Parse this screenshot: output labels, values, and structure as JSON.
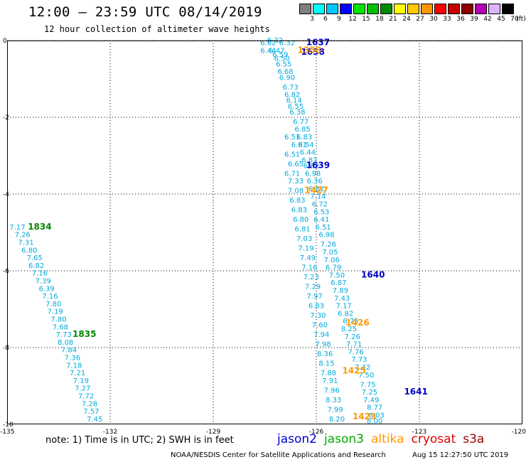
{
  "header": {
    "title": "12:00 — 23:59 UTC 08/14/2019",
    "subtitle": "12 hour collection of altimeter wave heights"
  },
  "colorbar": {
    "unit": "(ft)",
    "bins": [
      {
        "label": "3",
        "color": "#7f7f7f"
      },
      {
        "label": "6",
        "color": "#00ffff"
      },
      {
        "label": "9",
        "color": "#00c8ff"
      },
      {
        "label": "12",
        "color": "#0000ff"
      },
      {
        "label": "15",
        "color": "#00e600"
      },
      {
        "label": "18",
        "color": "#00c000"
      },
      {
        "label": "21",
        "color": "#008c00"
      },
      {
        "label": "24",
        "color": "#ffff00"
      },
      {
        "label": "27",
        "color": "#ffc800"
      },
      {
        "label": "30",
        "color": "#ff9600"
      },
      {
        "label": "33",
        "color": "#ff0000"
      },
      {
        "label": "36",
        "color": "#c80000"
      },
      {
        "label": "39",
        "color": "#8c0000"
      },
      {
        "label": "42",
        "color": "#b400b4"
      },
      {
        "label": "45",
        "color": "#dcb4ff"
      },
      {
        "label": "70",
        "color": "#000000"
      }
    ]
  },
  "axes": {
    "x_ticks": [
      "-135",
      "-132",
      "-129",
      "-126",
      "-123",
      "-120"
    ],
    "y_ticks": [
      "0",
      "-2",
      "-4",
      "-6",
      "-8",
      "-10"
    ],
    "lon_range": [
      -135,
      -120
    ],
    "lat_range": [
      -10,
      0
    ],
    "grid": "dotted"
  },
  "tracks": [
    {
      "satellite": "jason2",
      "color": "#00aadd",
      "swh": [
        {
          "lon": -126.85,
          "lat": -0.05,
          "v": "6.32"
        },
        {
          "lon": -127.2,
          "lat": 0.02,
          "v": "6.32"
        },
        {
          "lon": -127.15,
          "lat": -0.25,
          "v": "6.47"
        },
        {
          "lon": -127.05,
          "lat": -0.35,
          "v": "6.59"
        },
        {
          "lon": -127.0,
          "lat": -0.45,
          "v": "6.50"
        },
        {
          "lon": -126.95,
          "lat": -0.6,
          "v": "6.55"
        },
        {
          "lon": -126.9,
          "lat": -0.8,
          "v": "6.68"
        },
        {
          "lon": -126.85,
          "lat": -0.95,
          "v": "6.90"
        },
        {
          "lon": -126.75,
          "lat": -1.2,
          "v": "6.73"
        },
        {
          "lon": -126.7,
          "lat": -1.4,
          "v": "6.82"
        },
        {
          "lon": -126.65,
          "lat": -1.55,
          "v": "6.14"
        },
        {
          "lon": -126.6,
          "lat": -1.7,
          "v": "6.55"
        },
        {
          "lon": -126.55,
          "lat": -1.85,
          "v": "6.38"
        },
        {
          "lon": -126.45,
          "lat": -2.1,
          "v": "6.77"
        },
        {
          "lon": -126.4,
          "lat": -2.3,
          "v": "6.85"
        },
        {
          "lon": -126.35,
          "lat": -2.5,
          "v": "6.83"
        },
        {
          "lon": -126.3,
          "lat": -2.7,
          "v": "6.54"
        },
        {
          "lon": -126.25,
          "lat": -2.9,
          "v": "6.44"
        },
        {
          "lon": -126.2,
          "lat": -3.1,
          "v": "6.87"
        },
        {
          "lon": -126.15,
          "lat": -3.25,
          "v": "6.62"
        },
        {
          "lon": -126.1,
          "lat": -3.45,
          "v": "6.98"
        },
        {
          "lon": -126.05,
          "lat": -3.65,
          "v": "6.36"
        },
        {
          "lon": -126.0,
          "lat": -3.85,
          "v": "6.81"
        },
        {
          "lon": -125.95,
          "lat": -4.05,
          "v": "7.14"
        },
        {
          "lon": -125.9,
          "lat": -4.25,
          "v": "6.72"
        },
        {
          "lon": -125.85,
          "lat": -4.45,
          "v": "6.53"
        },
        {
          "lon": -125.85,
          "lat": -4.65,
          "v": "6.41"
        },
        {
          "lon": -125.8,
          "lat": -4.85,
          "v": "6.51"
        },
        {
          "lon": -125.7,
          "lat": -5.05,
          "v": "6.98"
        },
        {
          "lon": -125.65,
          "lat": -5.3,
          "v": "7.26"
        },
        {
          "lon": -125.6,
          "lat": -5.5,
          "v": "7.05"
        },
        {
          "lon": -125.55,
          "lat": -5.7,
          "v": "7.06"
        },
        {
          "lon": -125.5,
          "lat": -5.9,
          "v": "6.79"
        },
        {
          "lon": -125.4,
          "lat": -6.1,
          "v": "7.50"
        },
        {
          "lon": -125.35,
          "lat": -6.3,
          "v": "6.87"
        },
        {
          "lon": -125.3,
          "lat": -6.5,
          "v": "7.89"
        },
        {
          "lon": -125.25,
          "lat": -6.7,
          "v": "7.43"
        },
        {
          "lon": -125.2,
          "lat": -6.9,
          "v": "7.17"
        },
        {
          "lon": -125.15,
          "lat": -7.1,
          "v": "6.82"
        },
        {
          "lon": -125.0,
          "lat": -7.3,
          "v": "6.75"
        },
        {
          "lon": -125.05,
          "lat": -7.5,
          "v": "8.25"
        },
        {
          "lon": -124.95,
          "lat": -7.7,
          "v": "7.26"
        },
        {
          "lon": -124.9,
          "lat": -7.9,
          "v": "7.71"
        },
        {
          "lon": -124.85,
          "lat": -8.1,
          "v": "7.76"
        },
        {
          "lon": -124.75,
          "lat": -8.3,
          "v": "7.73"
        },
        {
          "lon": -124.65,
          "lat": -8.5,
          "v": "7.42"
        },
        {
          "lon": -124.55,
          "lat": -8.7,
          "v": "7.50"
        },
        {
          "lon": -124.5,
          "lat": -8.95,
          "v": "7.75"
        },
        {
          "lon": -124.45,
          "lat": -9.15,
          "v": "7.25"
        },
        {
          "lon": -124.4,
          "lat": -9.35,
          "v": "7.49"
        },
        {
          "lon": -124.3,
          "lat": -9.55,
          "v": "8.77"
        },
        {
          "lon": -124.25,
          "lat": -9.75,
          "v": "8.03"
        },
        {
          "lon": -124.3,
          "lat": -9.9,
          "v": "8.00"
        }
      ],
      "pass_times": [
        {
          "lon": -125.95,
          "lat": -0.05,
          "v": "1637",
          "color": "#0000cc"
        },
        {
          "lon": -126.1,
          "lat": -0.3,
          "v": "1638",
          "color": "#0000cc"
        },
        {
          "lon": -125.95,
          "lat": -3.25,
          "v": "1639",
          "color": "#0000cc"
        },
        {
          "lon": -124.35,
          "lat": -6.1,
          "v": "1640",
          "color": "#0000cc"
        },
        {
          "lon": -123.1,
          "lat": -9.15,
          "v": "1641",
          "color": "#0000cc"
        }
      ]
    },
    {
      "satellite": "altika",
      "color": "#00aadd",
      "swh": [
        {
          "lon": -127.4,
          "lat": -0.05,
          "v": "6.62"
        },
        {
          "lon": -127.4,
          "lat": -0.25,
          "v": "6.44"
        },
        {
          "lon": -126.6,
          "lat": -3.9,
          "v": "7.08"
        },
        {
          "lon": -126.6,
          "lat": -3.65,
          "v": "7.33"
        },
        {
          "lon": -126.7,
          "lat": -3.45,
          "v": "6.71"
        },
        {
          "lon": -126.6,
          "lat": -3.2,
          "v": "6.65"
        },
        {
          "lon": -126.7,
          "lat": -2.95,
          "v": "6.51"
        },
        {
          "lon": -126.7,
          "lat": -2.5,
          "v": "6.51"
        },
        {
          "lon": -126.5,
          "lat": -2.7,
          "v": "6.81"
        },
        {
          "lon": -126.55,
          "lat": -4.15,
          "v": "6.83"
        },
        {
          "lon": -126.5,
          "lat": -4.4,
          "v": "6.83"
        },
        {
          "lon": -126.45,
          "lat": -4.65,
          "v": "6.80"
        },
        {
          "lon": -126.4,
          "lat": -4.9,
          "v": "6.81"
        },
        {
          "lon": -126.35,
          "lat": -5.15,
          "v": "7.03"
        },
        {
          "lon": -126.3,
          "lat": -5.4,
          "v": "7.19"
        },
        {
          "lon": -126.25,
          "lat": -5.65,
          "v": "7.49"
        },
        {
          "lon": -126.2,
          "lat": -5.9,
          "v": "7.16"
        },
        {
          "lon": -126.15,
          "lat": -6.15,
          "v": "7.23"
        },
        {
          "lon": -126.1,
          "lat": -6.4,
          "v": "7.29"
        },
        {
          "lon": -126.05,
          "lat": -6.65,
          "v": "7.97"
        },
        {
          "lon": -126.0,
          "lat": -6.9,
          "v": "6.83"
        },
        {
          "lon": -125.95,
          "lat": -7.15,
          "v": "7.30"
        },
        {
          "lon": -125.9,
          "lat": -7.4,
          "v": "7.60"
        },
        {
          "lon": -125.85,
          "lat": -7.65,
          "v": "7.94"
        },
        {
          "lon": -125.8,
          "lat": -7.9,
          "v": "7.98"
        },
        {
          "lon": -125.75,
          "lat": -8.15,
          "v": "8.36"
        },
        {
          "lon": -125.7,
          "lat": -8.4,
          "v": "8.15"
        },
        {
          "lon": -125.65,
          "lat": -8.65,
          "v": "7.88"
        },
        {
          "lon": -125.6,
          "lat": -8.85,
          "v": "7.91"
        },
        {
          "lon": -125.55,
          "lat": -9.1,
          "v": "7.96"
        },
        {
          "lon": -125.5,
          "lat": -9.35,
          "v": "8.33"
        },
        {
          "lon": -125.45,
          "lat": -9.6,
          "v": "7.99"
        },
        {
          "lon": -125.4,
          "lat": -9.85,
          "v": "8.20"
        }
      ],
      "pass_times": [
        {
          "lon": -126.2,
          "lat": -0.25,
          "v": "1358",
          "color": "#ff9900"
        },
        {
          "lon": -126.0,
          "lat": -3.9,
          "v": "1427",
          "color": "#ff9900"
        },
        {
          "lon": -124.8,
          "lat": -7.35,
          "v": "1426",
          "color": "#ff9900"
        },
        {
          "lon": -124.9,
          "lat": -8.6,
          "v": "1425",
          "color": "#ff9900"
        },
        {
          "lon": -124.6,
          "lat": -9.8,
          "v": "1423",
          "color": "#ff9900"
        }
      ]
    },
    {
      "satellite": "jason3",
      "color": "#00aadd",
      "swh": [
        {
          "lon": -134.7,
          "lat": -4.85,
          "v": "7.17"
        },
        {
          "lon": -134.55,
          "lat": -5.05,
          "v": "7.26"
        },
        {
          "lon": -134.45,
          "lat": -5.25,
          "v": "7.31"
        },
        {
          "lon": -134.35,
          "lat": -5.45,
          "v": "6.80"
        },
        {
          "lon": -134.2,
          "lat": -5.65,
          "v": "7.65"
        },
        {
          "lon": -134.15,
          "lat": -5.85,
          "v": "6.82"
        },
        {
          "lon": -134.05,
          "lat": -6.05,
          "v": "7.16"
        },
        {
          "lon": -133.95,
          "lat": -6.25,
          "v": "7.39"
        },
        {
          "lon": -133.85,
          "lat": -6.45,
          "v": "6.39"
        },
        {
          "lon": -133.75,
          "lat": -6.65,
          "v": "7.16"
        },
        {
          "lon": -133.65,
          "lat": -6.85,
          "v": "7.80"
        },
        {
          "lon": -133.6,
          "lat": -7.05,
          "v": "7.19"
        },
        {
          "lon": -133.5,
          "lat": -7.25,
          "v": "7.80"
        },
        {
          "lon": -133.45,
          "lat": -7.45,
          "v": "7.68"
        },
        {
          "lon": -133.35,
          "lat": -7.65,
          "v": "7.73"
        },
        {
          "lon": -133.3,
          "lat": -7.85,
          "v": "8.08"
        },
        {
          "lon": -133.2,
          "lat": -8.05,
          "v": "7.84"
        },
        {
          "lon": -133.1,
          "lat": -8.25,
          "v": "7.36"
        },
        {
          "lon": -133.05,
          "lat": -8.45,
          "v": "7.18"
        },
        {
          "lon": -132.95,
          "lat": -8.65,
          "v": "7.21"
        },
        {
          "lon": -132.85,
          "lat": -8.85,
          "v": "7.19"
        },
        {
          "lon": -132.8,
          "lat": -9.05,
          "v": "7.27"
        },
        {
          "lon": -132.7,
          "lat": -9.25,
          "v": "7.72"
        },
        {
          "lon": -132.6,
          "lat": -9.45,
          "v": "7.28"
        },
        {
          "lon": -132.55,
          "lat": -9.65,
          "v": "7.57"
        },
        {
          "lon": -132.45,
          "lat": -9.85,
          "v": "7.45"
        }
      ],
      "pass_times": [
        {
          "lon": -134.05,
          "lat": -4.85,
          "v": "1834",
          "color": "#008800"
        },
        {
          "lon": -132.75,
          "lat": -7.65,
          "v": "1835",
          "color": "#008800"
        }
      ]
    }
  ],
  "footer": {
    "note": "note:  1) Time is in UTC;  2) SWH is in feet",
    "legend": [
      {
        "label": "jason2",
        "color": "#0000cc"
      },
      {
        "label": "jason3",
        "color": "#00aa00"
      },
      {
        "label": "altika",
        "color": "#ff9900"
      },
      {
        "label": "cryosat",
        "color": "#dd0000"
      },
      {
        "label": "s3a",
        "color": "#990000"
      }
    ],
    "credit": "NOAA/NESDIS Center for Satellite Applications and Research",
    "timestamp": "Aug 15 12:27:50 UTC 2019"
  }
}
